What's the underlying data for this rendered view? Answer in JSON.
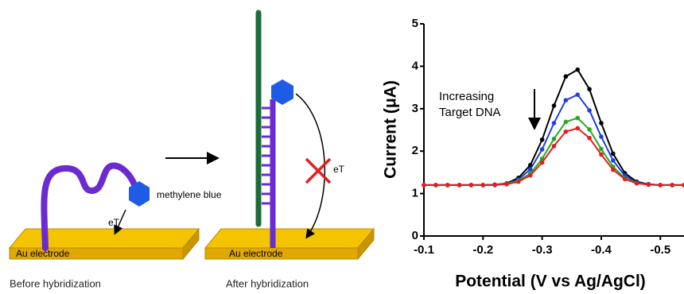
{
  "diagram": {
    "before": {
      "label": "methylene blue",
      "transfer": "eT",
      "electrode": "Au electrode",
      "caption": "Before hybridization"
    },
    "after": {
      "transfer": "eT",
      "electrode": "Au electrode",
      "caption": "After hybridization"
    }
  },
  "chart_data": {
    "type": "scatter",
    "x_label": "Potential (V vs Ag/AgCl)",
    "y_label": "Current (μA)",
    "annotation": [
      "Increasing",
      "Target DNA"
    ],
    "x": [
      -0.1,
      -0.12,
      -0.14,
      -0.16,
      -0.18,
      -0.2,
      -0.22,
      -0.24,
      -0.26,
      -0.28,
      -0.3,
      -0.32,
      -0.34,
      -0.36,
      -0.38,
      -0.4,
      -0.42,
      -0.44,
      -0.46,
      -0.48,
      -0.5,
      -0.52,
      -0.54
    ],
    "series": [
      {
        "color": "#000000",
        "values": [
          1.2,
          1.2,
          1.2,
          1.2,
          1.2,
          1.2,
          1.21,
          1.24,
          1.37,
          1.67,
          2.27,
          3.07,
          3.76,
          3.92,
          3.46,
          2.66,
          1.94,
          1.48,
          1.28,
          1.22,
          1.2,
          1.2,
          1.2
        ]
      },
      {
        "color": "#1f3fe0",
        "values": [
          1.2,
          1.2,
          1.2,
          1.2,
          1.2,
          1.2,
          1.21,
          1.23,
          1.33,
          1.57,
          2.04,
          2.66,
          3.2,
          3.33,
          2.96,
          2.34,
          1.78,
          1.42,
          1.26,
          1.22,
          1.2,
          1.2,
          1.2
        ]
      },
      {
        "color": "#22aa22",
        "values": [
          1.2,
          1.2,
          1.2,
          1.2,
          1.2,
          1.2,
          1.2,
          1.23,
          1.3,
          1.47,
          1.82,
          2.29,
          2.69,
          2.78,
          2.51,
          2.05,
          1.63,
          1.36,
          1.25,
          1.21,
          1.2,
          1.2,
          1.2
        ]
      },
      {
        "color": "#e02020",
        "values": [
          1.2,
          1.2,
          1.2,
          1.2,
          1.2,
          1.2,
          1.2,
          1.22,
          1.28,
          1.43,
          1.73,
          2.12,
          2.46,
          2.54,
          2.31,
          1.92,
          1.56,
          1.34,
          1.24,
          1.21,
          1.2,
          1.2,
          1.2
        ]
      }
    ],
    "xlim": [
      -0.1,
      -0.54
    ],
    "xticks": [
      -0.1,
      -0.2,
      -0.3,
      -0.4,
      -0.5
    ],
    "ylim": [
      0,
      5
    ],
    "yticks": [
      0,
      1,
      2,
      3,
      4,
      5
    ],
    "grid": false
  }
}
